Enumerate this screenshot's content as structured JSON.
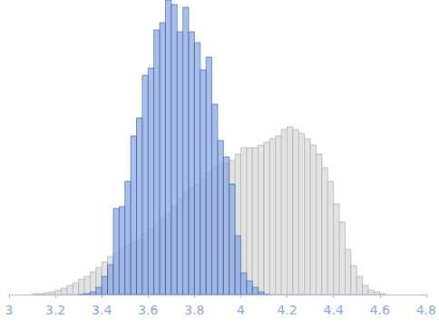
{
  "chart_data": {
    "type": "histogram",
    "series": [
      {
        "color": "#e3e3e3",
        "edge_color": "#b5b5b5",
        "bins": [
          3.1,
          3.125,
          3.15,
          3.175,
          3.2,
          3.225,
          3.25,
          3.275,
          3.3,
          3.325,
          3.35,
          3.375,
          3.4,
          3.425,
          3.45,
          3.475,
          3.5,
          3.525,
          3.55,
          3.575,
          3.6,
          3.625,
          3.65,
          3.675,
          3.7,
          3.725,
          3.75,
          3.775,
          3.8,
          3.825,
          3.85,
          3.875,
          3.9,
          3.925,
          3.95,
          3.975,
          4.0,
          4.025,
          4.05,
          4.075,
          4.1,
          4.125,
          4.15,
          4.175,
          4.2,
          4.225,
          4.25,
          4.275,
          4.3,
          4.325,
          4.35,
          4.375,
          4.4,
          4.425,
          4.45,
          4.475,
          4.5,
          4.525,
          4.55,
          4.575,
          4.6,
          4.625
        ],
        "values": [
          1,
          1,
          2,
          3,
          5,
          7,
          10,
          13,
          17,
          20,
          25,
          30,
          36,
          42,
          46,
          50,
          54,
          58,
          62,
          67,
          72,
          77,
          85,
          90,
          98,
          105,
          113,
          118,
          122,
          127,
          135,
          140,
          143,
          145,
          148,
          155,
          162,
          162,
          162,
          165,
          168,
          172,
          175,
          182,
          185,
          182,
          178,
          172,
          165,
          155,
          140,
          125,
          100,
          80,
          50,
          32,
          20,
          10,
          5,
          3,
          1
        ]
      },
      {
        "color": "#8eaadf",
        "edge_color": "#2f5aa8",
        "bins": [
          3.3,
          3.325,
          3.35,
          3.375,
          3.4,
          3.425,
          3.45,
          3.475,
          3.5,
          3.525,
          3.55,
          3.575,
          3.6,
          3.625,
          3.65,
          3.675,
          3.7,
          3.725,
          3.75,
          3.775,
          3.8,
          3.825,
          3.85,
          3.875,
          3.9,
          3.925,
          3.95,
          3.975,
          4.0,
          4.025,
          4.05,
          4.075,
          4.1,
          4.125
        ],
        "values": [
          0,
          1,
          3,
          8,
          20,
          33,
          95,
          97,
          125,
          175,
          195,
          242,
          250,
          292,
          300,
          325,
          320,
          290,
          317,
          290,
          278,
          248,
          262,
          210,
          170,
          152,
          122,
          65,
          24,
          15,
          8,
          3,
          0
        ]
      }
    ],
    "xlim": [
      3,
      4.8
    ],
    "xticks": [
      3,
      3.2,
      3.4,
      3.6,
      3.8,
      4,
      4.2,
      4.4,
      4.6,
      4.8
    ],
    "ylim": [
      0,
      325
    ],
    "yticks": [],
    "tick_labels": "x",
    "grid": false
  }
}
